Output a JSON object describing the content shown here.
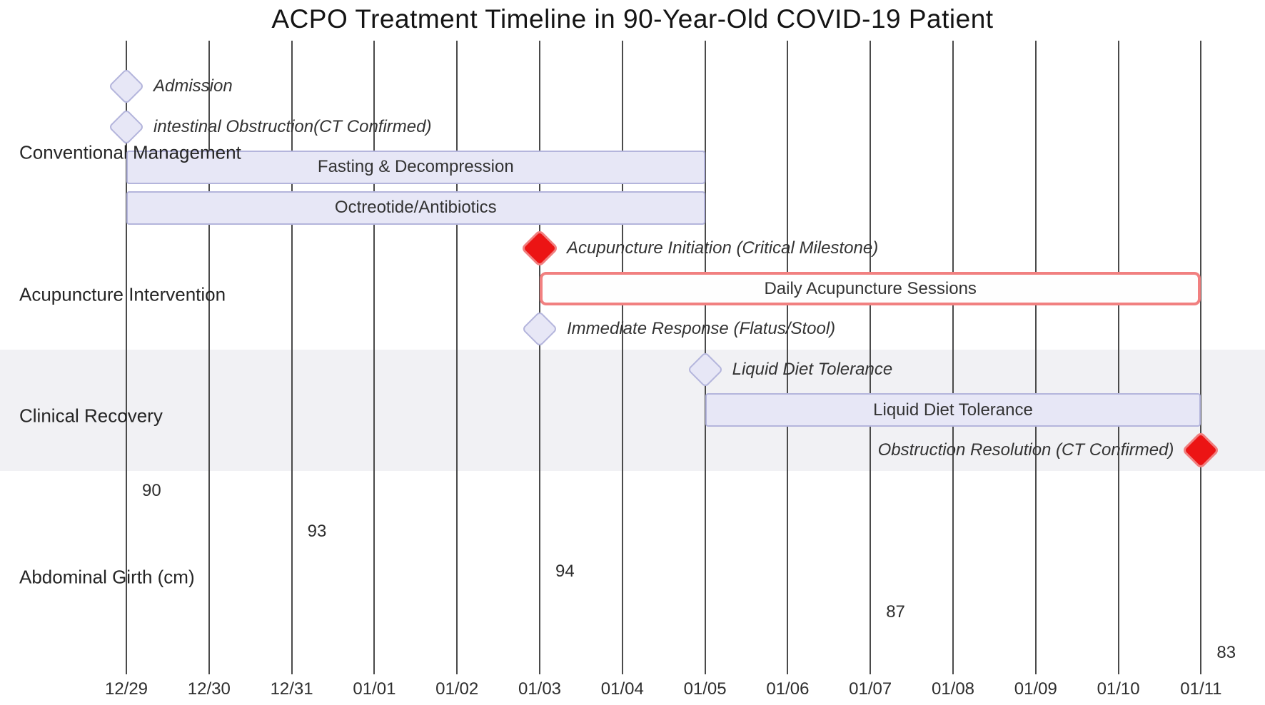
{
  "colors": {
    "lavender_fill": "#E7E7F6",
    "lavender_border": "#B4B5DC",
    "critical_fill": "#EC1414",
    "critical_border": "#F07F7F",
    "critical_bar_fill": "#FEFEFE",
    "critical_bar_border": "#F18080",
    "section_band": "#F1F1F4",
    "gridline": "#4A4A4A",
    "text": "#2E2E2E",
    "title": "#141414"
  },
  "chart_data": {
    "type": "gantt",
    "title": "ACPO Treatment Timeline in 90-Year-Old COVID-19 Patient",
    "grid": true,
    "x_axis_dates": [
      "12/29",
      "12/30",
      "12/31",
      "01/01",
      "01/02",
      "01/03",
      "01/04",
      "01/05",
      "01/06",
      "01/07",
      "01/08",
      "01/09",
      "01/10",
      "01/11"
    ],
    "sections": [
      {
        "name": "Conventional Management",
        "shaded": false,
        "items": [
          {
            "kind": "milestone",
            "label": "Admission",
            "date": "12/29",
            "critical": false,
            "label_side": "right"
          },
          {
            "kind": "milestone",
            "label": "intestinal Obstruction(CT Confirmed)",
            "date": "12/29",
            "critical": false,
            "label_side": "right"
          },
          {
            "kind": "task",
            "label": "Fasting & Decompression",
            "start": "12/29",
            "end": "01/05",
            "style": "normal"
          },
          {
            "kind": "task",
            "label": "Octreotide/Antibiotics",
            "start": "12/29",
            "end": "01/05",
            "style": "normal"
          }
        ]
      },
      {
        "name": "Acupuncture Intervention",
        "shaded": false,
        "items": [
          {
            "kind": "milestone",
            "label": "Acupuncture Initiation (Critical Milestone)",
            "date": "01/03",
            "critical": true,
            "label_side": "right"
          },
          {
            "kind": "task",
            "label": "Daily Acupuncture Sessions",
            "start": "01/03",
            "end": "01/11",
            "style": "critical-outline"
          },
          {
            "kind": "milestone",
            "label": "Immediate Response (Flatus/Stool)",
            "date": "01/03",
            "critical": false,
            "label_side": "right"
          }
        ]
      },
      {
        "name": "Clinical Recovery",
        "shaded": true,
        "items": [
          {
            "kind": "milestone",
            "label": "Liquid Diet Tolerance",
            "date": "01/05",
            "critical": false,
            "label_side": "right"
          },
          {
            "kind": "task",
            "label": "Liquid Diet Tolerance",
            "start": "01/05",
            "end": "01/11",
            "style": "normal"
          },
          {
            "kind": "milestone",
            "label": "Obstruction Resolution (CT Confirmed)",
            "date": "01/11",
            "critical": true,
            "label_side": "left"
          }
        ]
      },
      {
        "name": "Abdominal Girth (cm)",
        "shaded": false,
        "items": [
          {
            "kind": "value",
            "label": "90",
            "date": "12/29"
          },
          {
            "kind": "value",
            "label": "93",
            "date": "12/31"
          },
          {
            "kind": "value",
            "label": "94",
            "date": "01/03"
          },
          {
            "kind": "value",
            "label": "87",
            "date": "01/07"
          },
          {
            "kind": "value",
            "label": "83",
            "date": "01/11"
          }
        ]
      }
    ],
    "abdominal_girth_cm": [
      {
        "date": "12/29",
        "value": 90
      },
      {
        "date": "12/31",
        "value": 93
      },
      {
        "date": "01/03",
        "value": 94
      },
      {
        "date": "01/07",
        "value": 87
      },
      {
        "date": "01/11",
        "value": 83
      }
    ]
  }
}
